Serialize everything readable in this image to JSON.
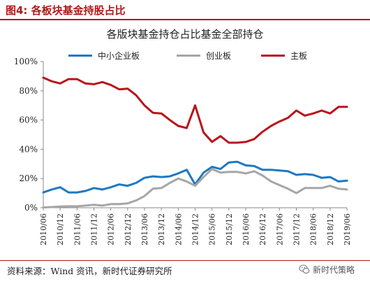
{
  "figure": {
    "label": "图4:  各板块基金持股占比",
    "source": "资料来源：Wind 资讯，新时代证券研究所",
    "watermark": "新时代策略"
  },
  "colors": {
    "header_red": "#b01a1a",
    "series": [
      "#1f78c1",
      "#a6a6a6",
      "#b8141b"
    ]
  },
  "icons": {
    "watermark": "wechat-icon"
  },
  "chart_data": {
    "type": "line",
    "title": "各版块基金持仓占比基金全部持仓",
    "xlabel": "",
    "ylabel": "",
    "ylim": [
      0,
      100
    ],
    "y_ticks": [
      "0%",
      "20%",
      "40%",
      "60%",
      "80%",
      "100%"
    ],
    "y_tick_values": [
      0,
      20,
      40,
      60,
      80,
      100
    ],
    "grid": false,
    "legend_position": "top",
    "x_tick_labels": [
      "2010/06",
      "2010/12",
      "2011/06",
      "2011/12",
      "2012/06",
      "2012/12",
      "2013/06",
      "2013/12",
      "2014/06",
      "2014/12",
      "2015/06",
      "2015/12",
      "2016/06",
      "2016/12",
      "2017/06",
      "2017/12",
      "2018/06",
      "2018/12",
      "2019/06"
    ],
    "x": [
      "2010/06",
      "2010/09",
      "2010/12",
      "2011/03",
      "2011/06",
      "2011/09",
      "2011/12",
      "2012/03",
      "2012/06",
      "2012/09",
      "2012/12",
      "2013/03",
      "2013/06",
      "2013/09",
      "2013/12",
      "2014/03",
      "2014/06",
      "2014/09",
      "2014/12",
      "2015/03",
      "2015/06",
      "2015/09",
      "2015/12",
      "2016/03",
      "2016/06",
      "2016/09",
      "2016/12",
      "2017/03",
      "2017/06",
      "2017/09",
      "2017/12",
      "2018/03",
      "2018/06",
      "2018/09",
      "2018/12",
      "2019/03",
      "2019/06"
    ],
    "series": [
      {
        "name": "中小企业板",
        "values": [
          10.5,
          12.5,
          14.0,
          10.5,
          10.5,
          11.5,
          13.5,
          12.5,
          14.0,
          16.0,
          15.0,
          17.0,
          20.5,
          21.5,
          21.0,
          21.5,
          23.5,
          26.0,
          16.0,
          24.0,
          28.0,
          26.5,
          31.0,
          31.5,
          29.0,
          28.5,
          26.0,
          26.0,
          25.5,
          25.0,
          22.5,
          23.0,
          22.5,
          20.5,
          21.0,
          18.0,
          18.5
        ]
      },
      {
        "name": "创业板",
        "values": [
          0.2,
          0.5,
          0.8,
          1.0,
          1.0,
          1.5,
          2.0,
          1.5,
          2.5,
          2.5,
          3.0,
          5.0,
          8.0,
          13.0,
          13.5,
          17.0,
          20.0,
          18.0,
          15.0,
          21.0,
          26.5,
          24.0,
          24.5,
          24.5,
          23.5,
          25.0,
          22.0,
          18.0,
          15.5,
          13.0,
          10.0,
          13.5,
          13.5,
          13.5,
          15.0,
          13.0,
          12.5
        ]
      },
      {
        "name": "主板",
        "values": [
          89.0,
          86.5,
          85.0,
          88.0,
          88.0,
          85.0,
          84.5,
          86.0,
          84.0,
          81.0,
          81.5,
          77.0,
          70.0,
          65.0,
          64.5,
          60.0,
          56.0,
          54.5,
          70.0,
          51.5,
          45.0,
          49.0,
          44.5,
          44.5,
          45.0,
          47.0,
          52.0,
          56.0,
          59.0,
          61.5,
          66.5,
          63.0,
          64.5,
          66.5,
          64.5,
          69.0,
          69.0
        ]
      }
    ]
  }
}
